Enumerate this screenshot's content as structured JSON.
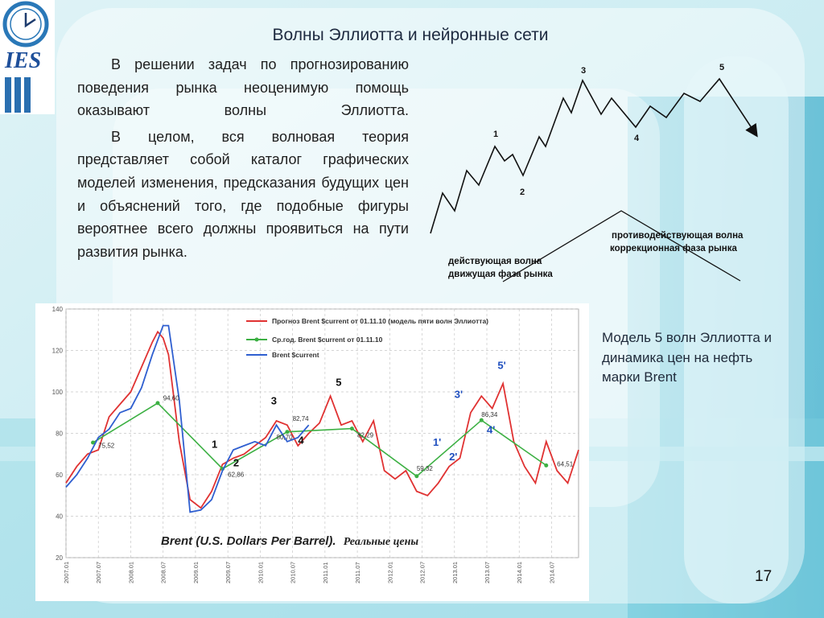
{
  "slide": {
    "title": "Волны Эллиотта и нейронные сети",
    "paragraphs": [
      "В решении задач по прогнозированию поведения рынка неоценимую помощь оказывают волны Эллиотта.",
      "В целом, вся волновая теория представляет собой каталог графических моделей изменения, предсказания будущих цен и объяснений того, где подобные фигуры вероятнее всего должны проявиться на пути развития рынка."
    ],
    "caption": "Модель 5 волн Эллиотта и динамика цен на нефть марки Brent",
    "page_number": "17",
    "logo_text": "IES"
  },
  "wave_diagram": {
    "labels": [
      "1",
      "2",
      "3",
      "4",
      "5"
    ],
    "impulse_label_1": "действующая волна",
    "impulse_label_2": "движущая фаза рынка",
    "correction_label_1": "противодействующая волна",
    "correction_label_2": "коррекционная фаза рынка"
  },
  "chart_data": {
    "type": "line",
    "title": "Brent (U.S. Dollars Per Barrel).",
    "title_suffix": "Реальные цены",
    "ylim": [
      20,
      140
    ],
    "yticks": [
      20,
      40,
      60,
      80,
      100,
      120,
      140
    ],
    "xlim": [
      "2007.01",
      "2014.12"
    ],
    "xticks": [
      "2007.01",
      "2007.07",
      "2008.01",
      "2008.07",
      "2009.01",
      "2009.07",
      "2010.01",
      "2010.07",
      "2011.01",
      "2011.07",
      "2012.01",
      "2012.07",
      "2013.01",
      "2013.07",
      "2014.01",
      "2014.07"
    ],
    "legend_position": "top-right",
    "series": [
      {
        "name": "Прогноз Brent $current от 01.11.10 (модель пяти волн Эллиотта)",
        "color": "#e03232",
        "x": [
          "2007.01",
          "2007.03",
          "2007.05",
          "2007.07",
          "2007.09",
          "2007.11",
          "2008.01",
          "2008.03",
          "2008.05",
          "2008.06",
          "2008.07",
          "2008.08",
          "2008.10",
          "2008.12",
          "2009.02",
          "2009.04",
          "2009.06",
          "2009.08",
          "2009.10",
          "2009.12",
          "2010.02",
          "2010.04",
          "2010.06",
          "2010.08",
          "2010.10",
          "2010.12",
          "2011.02",
          "2011.04",
          "2011.06",
          "2011.08",
          "2011.10",
          "2011.12",
          "2012.02",
          "2012.04",
          "2012.06",
          "2012.08",
          "2012.10",
          "2012.12",
          "2013.02",
          "2013.04",
          "2013.06",
          "2013.08",
          "2013.10",
          "2013.12",
          "2014.02",
          "2014.04",
          "2014.06",
          "2014.08",
          "2014.10",
          "2014.12"
        ],
        "y": [
          56,
          64,
          70,
          72,
          88,
          94,
          100,
          112,
          124,
          129,
          126,
          118,
          76,
          48,
          44,
          52,
          65,
          68,
          70,
          74,
          78,
          86,
          84,
          74,
          80,
          85,
          98,
          84,
          86,
          76,
          86,
          62,
          58,
          62,
          52,
          50,
          56,
          64,
          68,
          90,
          98,
          92,
          104,
          76,
          64,
          56,
          76,
          62,
          56,
          72
        ]
      },
      {
        "name": "Ср.год. Brent $current от 01.11.10",
        "color": "#3cb043",
        "x": [
          "2007.06",
          "2008.06",
          "2009.06",
          "2010.06",
          "2011.06",
          "2012.06",
          "2013.06",
          "2014.06"
        ],
        "y": [
          75.52,
          94.6,
          62.86,
          80.7,
          82.29,
          59.32,
          86.34,
          64.51
        ]
      },
      {
        "name": "Brent $current",
        "color": "#2f5fd0",
        "x": [
          "2007.01",
          "2007.03",
          "2007.05",
          "2007.07",
          "2007.09",
          "2007.11",
          "2008.01",
          "2008.03",
          "2008.05",
          "2008.07",
          "2008.08",
          "2008.10",
          "2008.12",
          "2009.02",
          "2009.04",
          "2009.06",
          "2009.08",
          "2009.10",
          "2009.12",
          "2010.02",
          "2010.04",
          "2010.06",
          "2010.08",
          "2010.10"
        ],
        "y": [
          54,
          60,
          68,
          78,
          82,
          90,
          92,
          102,
          118,
          132,
          132,
          96,
          42,
          43,
          48,
          62,
          72,
          74,
          76,
          74,
          84,
          76,
          78,
          84
        ]
      }
    ],
    "annotations": [
      {
        "text": "94,60",
        "x": "2008.07",
        "y": 96
      },
      {
        "text": "75,52",
        "x": "2007.07",
        "y": 73
      },
      {
        "text": "62,86",
        "x": "2009.07",
        "y": 59
      },
      {
        "text": "82,74",
        "x": "2010.07",
        "y": 86
      },
      {
        "text": "80,70",
        "x": "2010.04",
        "y": 77
      },
      {
        "text": "82,29",
        "x": "2011.07",
        "y": 78
      },
      {
        "text": "59,32",
        "x": "2012.06",
        "y": 62
      },
      {
        "text": "86,34",
        "x": "2013.06",
        "y": 88
      },
      {
        "text": "64,51",
        "x": "2014.08",
        "y": 64
      }
    ],
    "wave_marks": [
      {
        "text": "1",
        "x": "2009.04",
        "y": 73,
        "color": "#111"
      },
      {
        "text": "2",
        "x": "2009.08",
        "y": 64,
        "color": "#111"
      },
      {
        "text": "3",
        "x": "2010.03",
        "y": 94,
        "color": "#111"
      },
      {
        "text": "4",
        "x": "2010.08",
        "y": 75,
        "color": "#111"
      },
      {
        "text": "5",
        "x": "2011.03",
        "y": 103,
        "color": "#111"
      },
      {
        "text": "1'",
        "x": "2012.09",
        "y": 74,
        "color": "#1f4fbf"
      },
      {
        "text": "2'",
        "x": "2012.12",
        "y": 67,
        "color": "#1f4fbf"
      },
      {
        "text": "3'",
        "x": "2013.01",
        "y": 97,
        "color": "#1f4fbf"
      },
      {
        "text": "4'",
        "x": "2013.07",
        "y": 80,
        "color": "#1f4fbf"
      },
      {
        "text": "5'",
        "x": "2013.09",
        "y": 111,
        "color": "#1f4fbf"
      }
    ]
  }
}
